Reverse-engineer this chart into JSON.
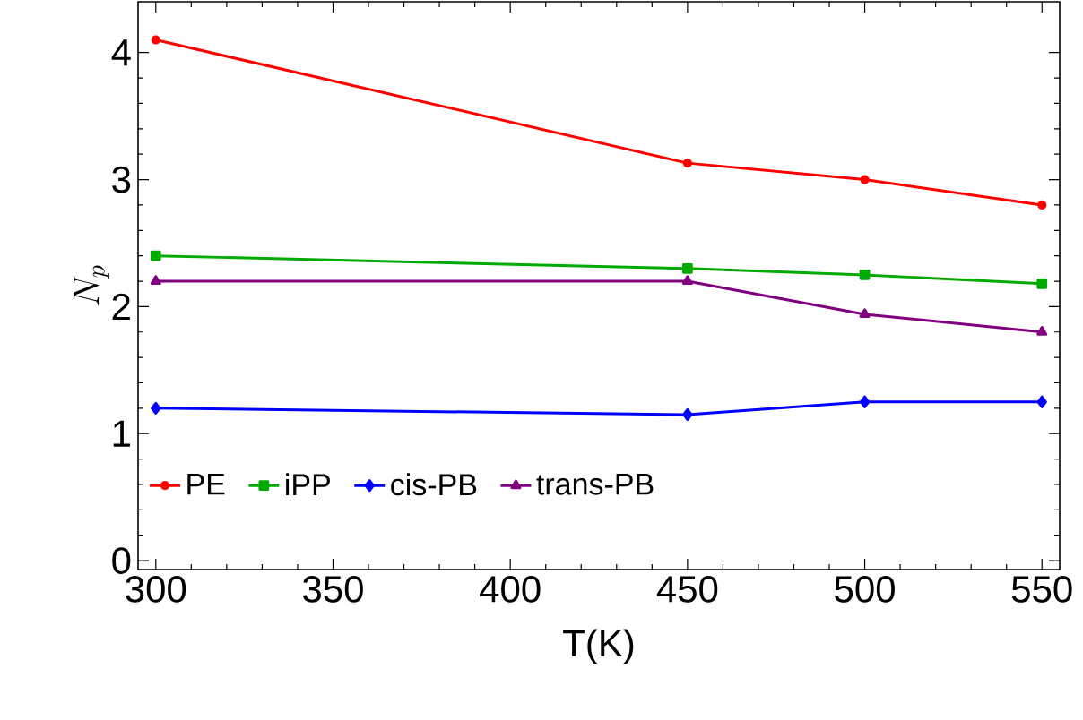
{
  "chart_data": {
    "type": "line",
    "xlabel": "T(K)",
    "ylabel": "N_p",
    "x": [
      300,
      450,
      500,
      550
    ],
    "series": [
      {
        "name": "PE",
        "color": "#ff0000",
        "marker": "circle",
        "values": [
          4.1,
          3.13,
          3.0,
          2.8
        ]
      },
      {
        "name": "iPP",
        "color": "#00aa00",
        "marker": "square",
        "values": [
          2.4,
          2.3,
          2.25,
          2.18
        ]
      },
      {
        "name": "cis-PB",
        "color": "#0000ff",
        "marker": "diamond",
        "values": [
          1.2,
          1.15,
          1.25,
          1.25
        ]
      },
      {
        "name": "trans-PB",
        "color": "#800080",
        "marker": "triangle",
        "values": [
          2.2,
          2.2,
          1.94,
          1.8
        ]
      }
    ],
    "xlim": [
      295,
      555
    ],
    "ylim": [
      -0.07,
      4.4
    ],
    "xticks": [
      300,
      350,
      400,
      450,
      500,
      550
    ],
    "yticks": [
      0,
      1,
      2,
      3,
      4
    ],
    "grid": false,
    "legend": "bottom",
    "line_style": "solid"
  }
}
